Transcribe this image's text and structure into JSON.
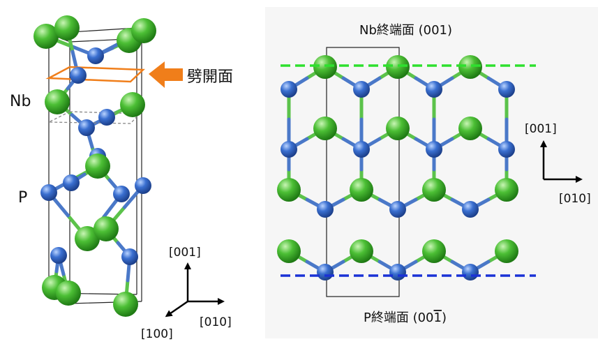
{
  "left_panel": {
    "cleavage_label": "劈開面",
    "atom_label_nb": "Nb",
    "atom_label_p": "P",
    "axes": {
      "z": "[001]",
      "y": "[010]",
      "x": "[100]"
    }
  },
  "right_panel": {
    "top_label": "Nb終端面 (001)",
    "bottom_label": "P終端面 (00",
    "bottom_label_bar_digit": "1",
    "bottom_label_close": ")",
    "axes": {
      "z": "[001]",
      "y": "[010]"
    }
  },
  "colors": {
    "nb_atom": "#3fae2a",
    "p_atom": "#2f63c2",
    "cleavage_plane": "#f07e1a",
    "nb_termination_line": "#2ee02e",
    "p_termination_line": "#1a32d6",
    "bond_green": "#5bc24a",
    "bond_blue": "#4a78c8",
    "cell_outline": "#222222"
  },
  "icons": [
    "axis-arrow-icon",
    "orange-arrow-icon"
  ]
}
